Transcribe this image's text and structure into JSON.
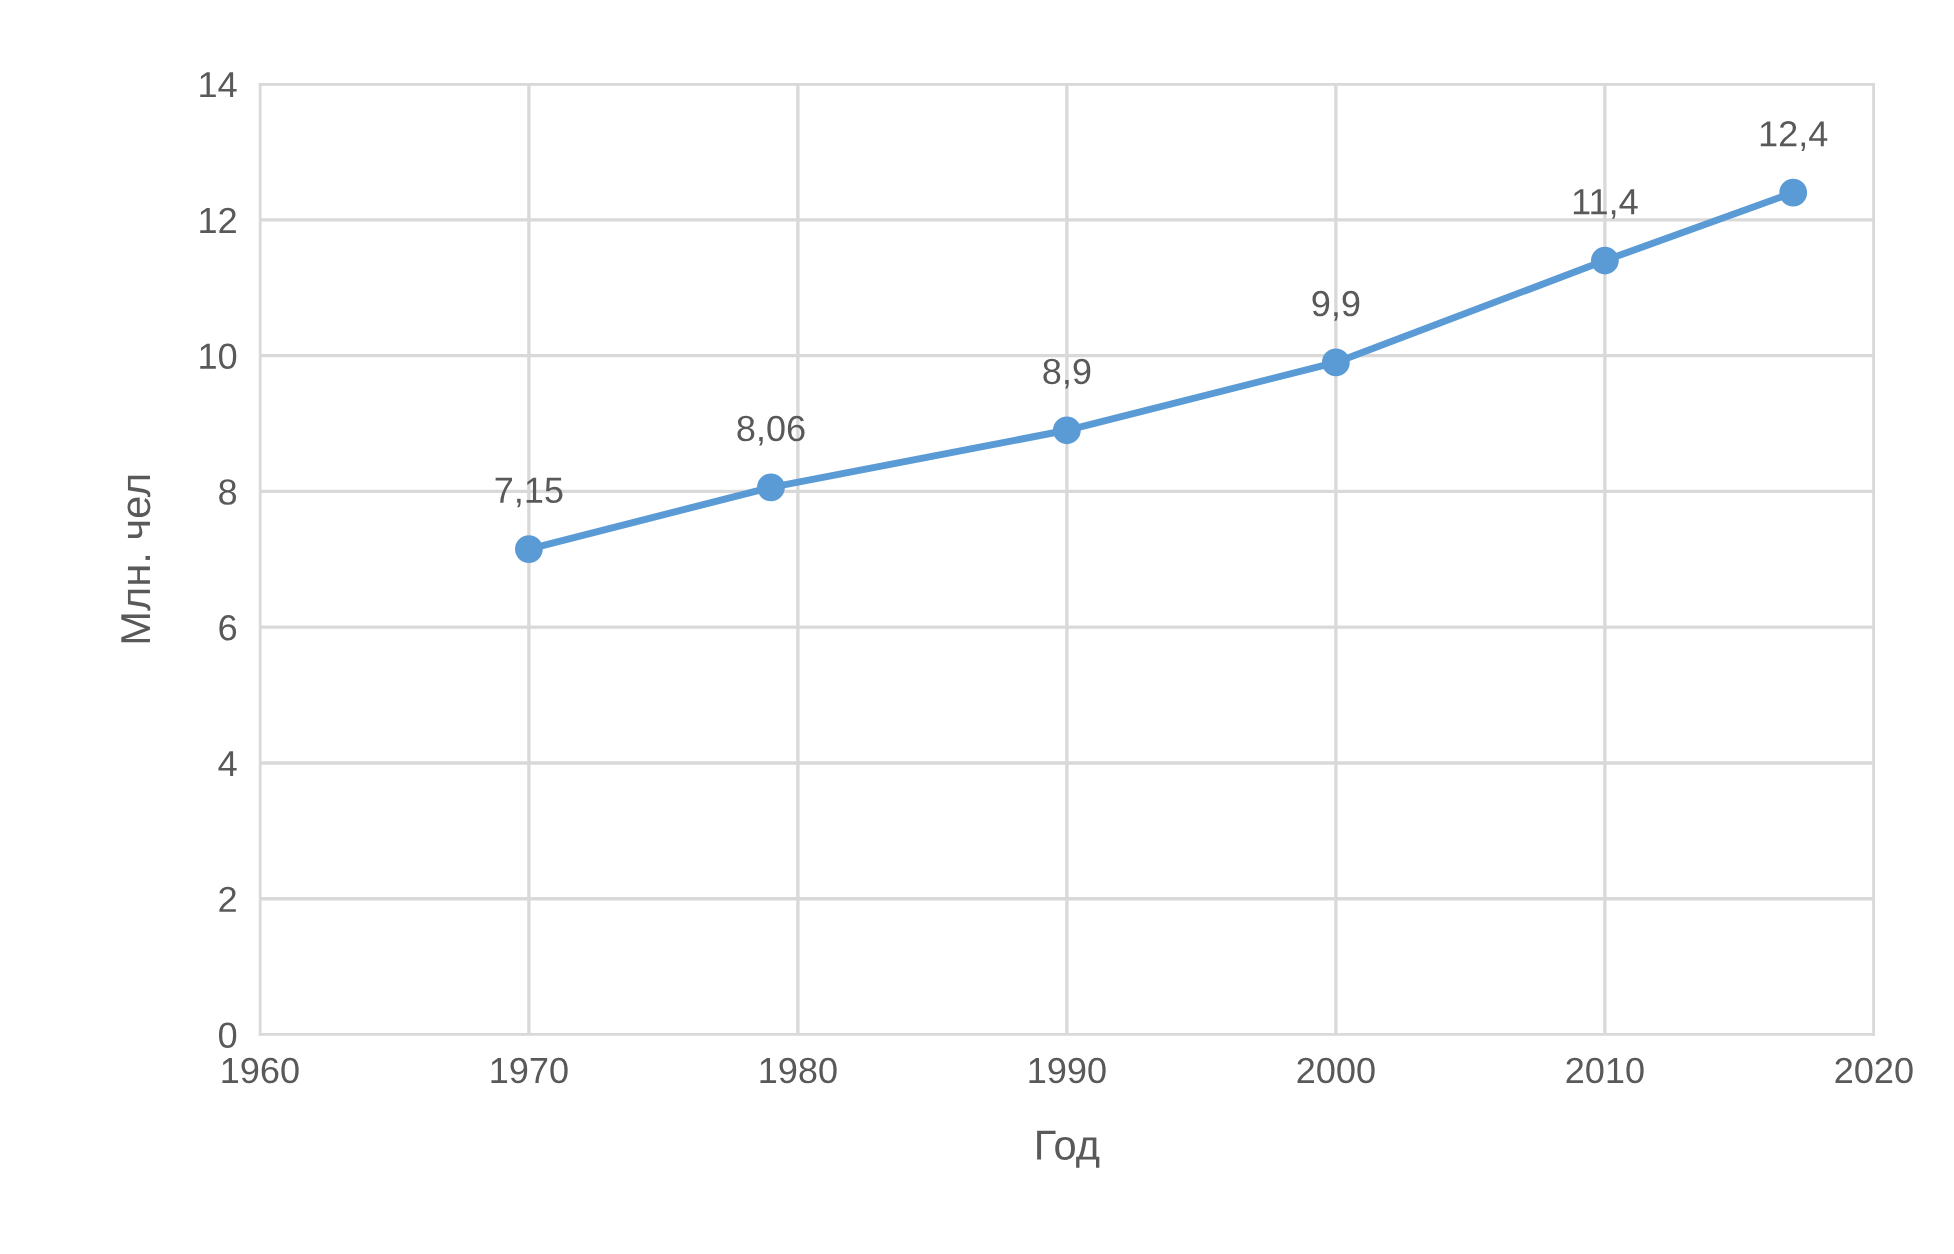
{
  "chart_data": {
    "type": "line",
    "xlabel": "Год",
    "ylabel": "Млн. чел",
    "x": [
      1970,
      1979,
      1990,
      2000,
      2010,
      2017
    ],
    "series": [
      {
        "color": "#5b9bd5",
        "values": [
          7.15,
          8.06,
          8.9,
          9.9,
          11.4,
          12.4
        ],
        "value_labels": [
          "7,15",
          "8,06",
          "8,9",
          "9,9",
          "11,4",
          "12,4"
        ]
      }
    ],
    "xlim": [
      1960,
      2020
    ],
    "xticks": [
      1960,
      1970,
      1980,
      1990,
      2000,
      2010,
      2020
    ],
    "ylim": [
      0,
      14
    ],
    "yticks": [
      0,
      2,
      4,
      6,
      8,
      10,
      12,
      14
    ],
    "grid": true,
    "marker": "circle",
    "line_style": "solid"
  }
}
